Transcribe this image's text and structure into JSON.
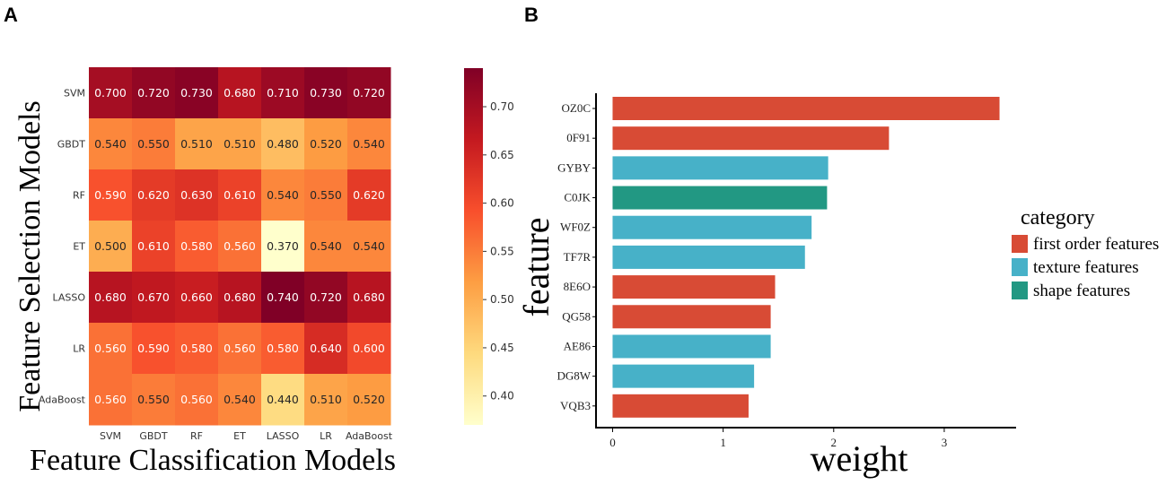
{
  "panels": {
    "a_label": "A",
    "b_label": "B"
  },
  "chart_data": [
    {
      "type": "heatmap",
      "panel": "A",
      "rows": [
        "SVM",
        "GBDT",
        "RF",
        "ET",
        "LASSO",
        "LR",
        "AdaBoost"
      ],
      "cols": [
        "SVM",
        "GBDT",
        "RF",
        "ET",
        "LASSO",
        "LR",
        "AdaBoost"
      ],
      "values": [
        [
          0.7,
          0.72,
          0.73,
          0.68,
          0.71,
          0.73,
          0.72
        ],
        [
          0.54,
          0.55,
          0.51,
          0.51,
          0.48,
          0.52,
          0.54
        ],
        [
          0.59,
          0.62,
          0.63,
          0.61,
          0.54,
          0.55,
          0.62
        ],
        [
          0.5,
          0.61,
          0.58,
          0.56,
          0.37,
          0.54,
          0.54
        ],
        [
          0.68,
          0.67,
          0.66,
          0.68,
          0.74,
          0.72,
          0.68
        ],
        [
          0.56,
          0.59,
          0.58,
          0.56,
          0.58,
          0.64,
          0.6
        ],
        [
          0.56,
          0.55,
          0.56,
          0.54,
          0.44,
          0.51,
          0.52
        ]
      ],
      "xlabel": "Feature Classification Models",
      "ylabel": "Feature Selection Models",
      "colorbar": {
        "range": [
          0.37,
          0.74
        ],
        "ticks": [
          0.4,
          0.45,
          0.5,
          0.55,
          0.6,
          0.65,
          0.7
        ],
        "colormap": "YlOrRd",
        "stops": [
          "#ffffcc",
          "#feda7e",
          "#fd9e43",
          "#f84f2c",
          "#c41920",
          "#800026"
        ]
      }
    },
    {
      "type": "bar",
      "orientation": "horizontal",
      "panel": "B",
      "categories": [
        "OZ0C",
        "0F91",
        "GYBY",
        "C0JK",
        "WF0Z",
        "TF7R",
        "8E6O",
        "QG58",
        "AE86",
        "DG8W",
        "VQB3"
      ],
      "values": [
        3.5,
        2.5,
        1.95,
        1.94,
        1.8,
        1.74,
        1.47,
        1.43,
        1.43,
        1.28,
        1.23
      ],
      "category_of_bar": [
        "first order features",
        "first order features",
        "texture features",
        "shape features",
        "texture features",
        "texture features",
        "first order features",
        "first order features",
        "texture features",
        "texture features",
        "first order features"
      ],
      "xlabel": "weight",
      "ylabel": "feature",
      "xlim": [
        -0.15,
        3.65
      ],
      "xticks": [
        0,
        1,
        2,
        3
      ],
      "legend": {
        "title": "category",
        "position": "right",
        "entries": [
          {
            "label": "first order features",
            "color": "#d84b35"
          },
          {
            "label": "texture features",
            "color": "#47b1c8"
          },
          {
            "label": "shape features",
            "color": "#229883"
          }
        ]
      }
    }
  ]
}
